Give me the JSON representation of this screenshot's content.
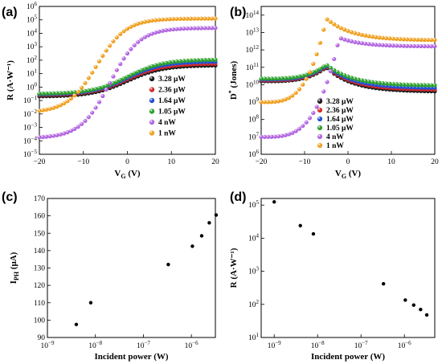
{
  "panels": [
    {
      "tag": "(a)",
      "chart_data": {
        "type": "scatter",
        "xlabel": "V_G (V)",
        "ylabel": "R (A·W⁻¹)",
        "xlim": [
          -20,
          20
        ],
        "ylim_log10": [
          -5,
          6
        ],
        "yscale": "log",
        "xticks": [
          "−20",
          "−10",
          "0",
          "10",
          "20"
        ],
        "yticks_exp": [
          -5,
          -4,
          -3,
          -2,
          -1,
          0,
          1,
          2,
          3,
          4,
          5,
          6
        ],
        "legend": "right",
        "series": [
          {
            "name": "3.28 μW",
            "color": "#1a1a1a",
            "curve": {
              "low": -0.7,
              "high": 1.62,
              "mid": 0,
              "k": 0.25
            }
          },
          {
            "name": "2.36 μW",
            "color": "#d62728",
            "curve": {
              "low": -0.6,
              "high": 1.75,
              "mid": 0,
              "k": 0.25
            }
          },
          {
            "name": "1.64 μW",
            "color": "#1f4fd6",
            "curve": {
              "low": -0.55,
              "high": 1.9,
              "mid": 0,
              "k": 0.25
            }
          },
          {
            "name": "1.05 μW",
            "color": "#2ca02c",
            "curve": {
              "low": -0.5,
              "high": 2.05,
              "mid": 0,
              "k": 0.25
            }
          },
          {
            "name": "4 nW",
            "color": "#b266e0",
            "curve": {
              "low": -3.8,
              "high": 4.4,
              "mid": -4,
              "k": 0.3
            }
          },
          {
            "name": "1 nW",
            "color": "#f0a020",
            "curve": {
              "low": -1.9,
              "high": 5.1,
              "mid": -7,
              "k": 0.3
            }
          }
        ]
      }
    },
    {
      "tag": "(b)",
      "chart_data": {
        "type": "scatter",
        "xlabel": "V_G (V)",
        "ylabel": "D* (Jones)",
        "xlim": [
          -20,
          20
        ],
        "ylim_log10": [
          6,
          14.5
        ],
        "yscale": "log",
        "xticks": [
          "−20",
          "−10",
          "0",
          "10",
          "20"
        ],
        "yticks_exp": [
          6,
          7,
          8,
          9,
          10,
          11,
          12,
          13,
          14
        ],
        "legend": "right",
        "series": [
          {
            "name": "3.28 μW",
            "color": "#1a1a1a",
            "peak": {
              "base": 10.3,
              "peakx": -5,
              "peak": 11.0,
              "end": 9.6,
              "start": 10.2
            }
          },
          {
            "name": "2.36 μW",
            "color": "#d62728",
            "peak": {
              "base": 10.3,
              "peakx": -5,
              "peak": 11.05,
              "end": 9.7,
              "start": 10.25
            }
          },
          {
            "name": "1.64 μW",
            "color": "#1f4fd6",
            "peak": {
              "base": 10.3,
              "peakx": -5,
              "peak": 11.1,
              "end": 9.8,
              "start": 10.3
            }
          },
          {
            "name": "1.05 μW",
            "color": "#2ca02c",
            "peak": {
              "base": 10.3,
              "peakx": -5,
              "peak": 11.15,
              "end": 9.95,
              "start": 10.35
            }
          },
          {
            "name": "4 nW",
            "color": "#b266e0",
            "peak": {
              "base": 7.0,
              "peakx": -2,
              "peak": 12.7,
              "end": 12.2,
              "start": 7.0
            }
          },
          {
            "name": "1 nW",
            "color": "#f0a020",
            "peak": {
              "base": 9.0,
              "peakx": -5,
              "peak": 13.8,
              "end": 12.55,
              "start": 9.0
            }
          }
        ]
      }
    },
    {
      "tag": "(c)",
      "chart_data": {
        "type": "scatter",
        "xlabel": "Incident power (W)",
        "ylabel": "I_PH (μA)",
        "xscale": "log",
        "xlim_log10": [
          -9,
          -5.5
        ],
        "xticks_exp": [
          -9,
          -8,
          -7,
          -6
        ],
        "ylim": [
          90,
          170
        ],
        "yticks": [
          90,
          100,
          110,
          120,
          130,
          140,
          150,
          160,
          170
        ],
        "series": [
          {
            "name": "",
            "color": "#000000",
            "points": [
              [
                4e-09,
                97.5
              ],
              [
                8e-09,
                110
              ],
              [
                3.3e-07,
                132
              ],
              [
                1.05e-06,
                142.5
              ],
              [
                1.64e-06,
                148.5
              ],
              [
                2.36e-06,
                156
              ],
              [
                3.28e-06,
                160.5
              ]
            ]
          }
        ]
      }
    },
    {
      "tag": "(d)",
      "chart_data": {
        "type": "scatter",
        "xlabel": "Incident power (W)",
        "ylabel": "R (A·W⁻¹)",
        "xscale": "log",
        "yscale": "log",
        "xlim_log10": [
          -9.3,
          -5.3
        ],
        "ylim_log10": [
          1,
          5.2
        ],
        "xticks_exp": [
          -9,
          -8,
          -7,
          -6
        ],
        "yticks_exp": [
          1,
          2,
          3,
          4,
          5
        ],
        "series": [
          {
            "name": "",
            "color": "#000000",
            "points": [
              [
                1e-09,
                125000
              ],
              [
                4e-09,
                24000
              ],
              [
                8e-09,
                13500
              ],
              [
                3.3e-07,
                420
              ],
              [
                1.05e-06,
                135
              ],
              [
                1.64e-06,
                95
              ],
              [
                2.36e-06,
                70
              ],
              [
                3.28e-06,
                48
              ]
            ]
          }
        ]
      }
    }
  ]
}
